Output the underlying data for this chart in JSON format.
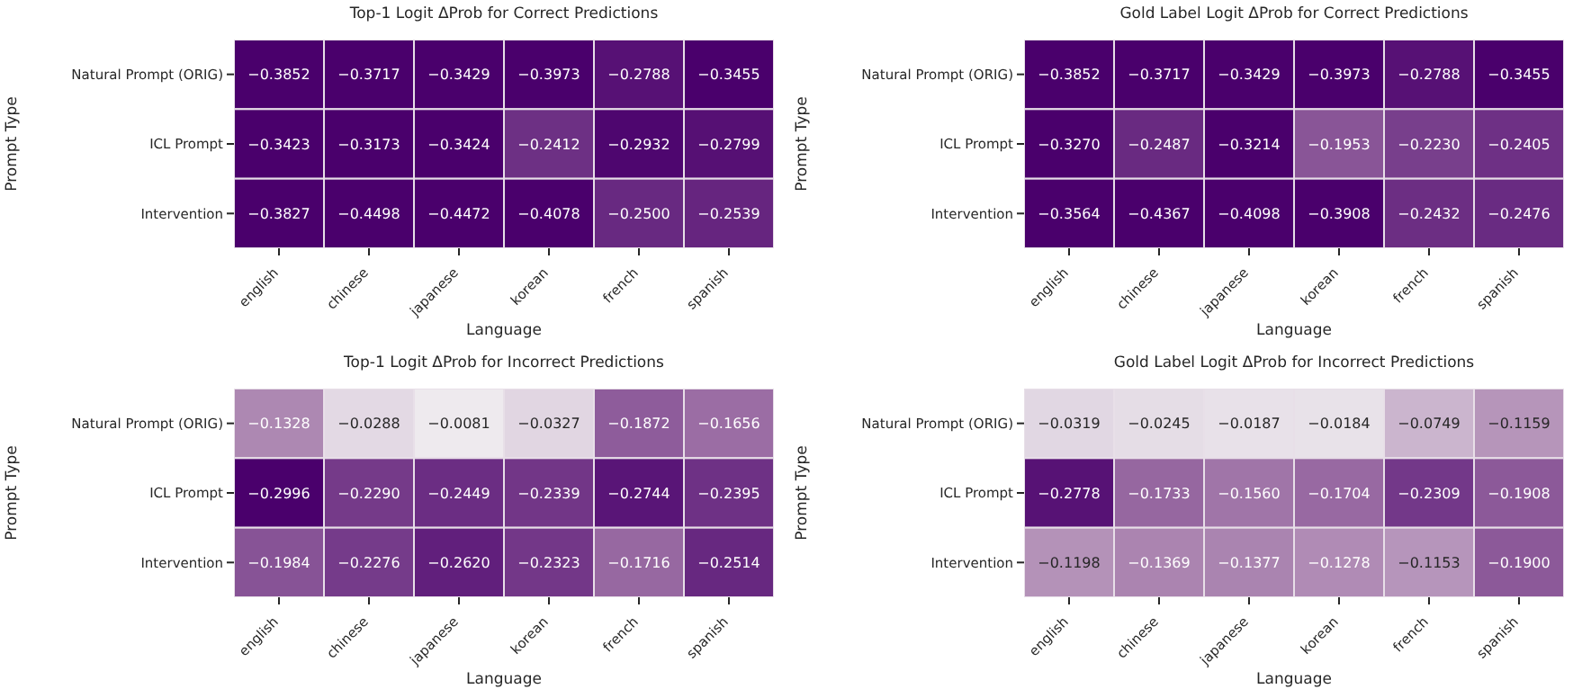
{
  "chart_data": [
    {
      "type": "heatmap",
      "title": "Top-1 Logit ΔProb for Correct Predictions",
      "xlabel": "Language",
      "ylabel": "Prompt Type",
      "categories": [
        "english",
        "chinese",
        "japanese",
        "korean",
        "french",
        "spanish"
      ],
      "y_categories": [
        "Natural Prompt (ORIG)",
        "ICL Prompt",
        "Intervention"
      ],
      "cells": [
        [
          -0.3852,
          -0.3717,
          -0.3429,
          -0.3973,
          -0.2788,
          -0.3455
        ],
        [
          -0.3423,
          -0.3173,
          -0.3424,
          -0.2412,
          -0.2932,
          -0.2799
        ],
        [
          -0.3827,
          -0.4498,
          -0.4472,
          -0.4078,
          -0.25,
          -0.2539
        ]
      ],
      "cell_labels": [
        [
          "−0.3852",
          "−0.3717",
          "−0.3429",
          "−0.3973",
          "−0.2788",
          "−0.3455"
        ],
        [
          "−0.3423",
          "−0.3173",
          "−0.3424",
          "−0.2412",
          "−0.2932",
          "−0.2799"
        ],
        [
          "−0.3827",
          "−0.4498",
          "−0.4472",
          "−0.4078",
          "−0.2500",
          "−0.2539"
        ]
      ]
    },
    {
      "type": "heatmap",
      "title": "Gold Label Logit ΔProb for Correct Predictions",
      "xlabel": "Language",
      "ylabel": "Prompt Type",
      "categories": [
        "english",
        "chinese",
        "japanese",
        "korean",
        "french",
        "spanish"
      ],
      "y_categories": [
        "Natural Prompt (ORIG)",
        "ICL Prompt",
        "Intervention"
      ],
      "cells": [
        [
          -0.3852,
          -0.3717,
          -0.3429,
          -0.3973,
          -0.2788,
          -0.3455
        ],
        [
          -0.327,
          -0.2487,
          -0.3214,
          -0.1953,
          -0.223,
          -0.2405
        ],
        [
          -0.3564,
          -0.4367,
          -0.4098,
          -0.3908,
          -0.2432,
          -0.2476
        ]
      ],
      "cell_labels": [
        [
          "−0.3852",
          "−0.3717",
          "−0.3429",
          "−0.3973",
          "−0.2788",
          "−0.3455"
        ],
        [
          "−0.3270",
          "−0.2487",
          "−0.3214",
          "−0.1953",
          "−0.2230",
          "−0.2405"
        ],
        [
          "−0.3564",
          "−0.4367",
          "−0.4098",
          "−0.3908",
          "−0.2432",
          "−0.2476"
        ]
      ]
    },
    {
      "type": "heatmap",
      "title": "Top-1 Logit ΔProb for Incorrect Predictions",
      "xlabel": "Language",
      "ylabel": "Prompt Type",
      "categories": [
        "english",
        "chinese",
        "japanese",
        "korean",
        "french",
        "spanish"
      ],
      "y_categories": [
        "Natural Prompt (ORIG)",
        "ICL Prompt",
        "Intervention"
      ],
      "cells": [
        [
          -0.1328,
          -0.0288,
          -0.0081,
          -0.0327,
          -0.1872,
          -0.1656
        ],
        [
          -0.2996,
          -0.229,
          -0.2449,
          -0.2339,
          -0.2744,
          -0.2395
        ],
        [
          -0.1984,
          -0.2276,
          -0.262,
          -0.2323,
          -0.1716,
          -0.2514
        ]
      ],
      "cell_labels": [
        [
          "−0.1328",
          "−0.0288",
          "−0.0081",
          "−0.0327",
          "−0.1872",
          "−0.1656"
        ],
        [
          "−0.2996",
          "−0.2290",
          "−0.2449",
          "−0.2339",
          "−0.2744",
          "−0.2395"
        ],
        [
          "−0.1984",
          "−0.2276",
          "−0.2620",
          "−0.2323",
          "−0.1716",
          "−0.2514"
        ]
      ]
    },
    {
      "type": "heatmap",
      "title": "Gold Label Logit ΔProb for Incorrect Predictions",
      "xlabel": "Language",
      "ylabel": "Prompt Type",
      "categories": [
        "english",
        "chinese",
        "japanese",
        "korean",
        "french",
        "spanish"
      ],
      "y_categories": [
        "Natural Prompt (ORIG)",
        "ICL Prompt",
        "Intervention"
      ],
      "cells": [
        [
          -0.0319,
          -0.0245,
          -0.0187,
          -0.0184,
          -0.0749,
          -0.1159
        ],
        [
          -0.2778,
          -0.1733,
          -0.156,
          -0.1704,
          -0.2309,
          -0.1908
        ],
        [
          -0.1198,
          -0.1369,
          -0.1377,
          -0.1278,
          -0.1153,
          -0.19
        ]
      ],
      "cell_labels": [
        [
          "−0.0319",
          "−0.0245",
          "−0.0187",
          "−0.0184",
          "−0.0749",
          "−0.1159"
        ],
        [
          "−0.2778",
          "−0.1733",
          "−0.1560",
          "−0.1704",
          "−0.2309",
          "−0.1908"
        ],
        [
          "−0.1198",
          "−0.1369",
          "−0.1377",
          "−0.1278",
          "−0.1153",
          "−0.1900"
        ]
      ]
    }
  ]
}
